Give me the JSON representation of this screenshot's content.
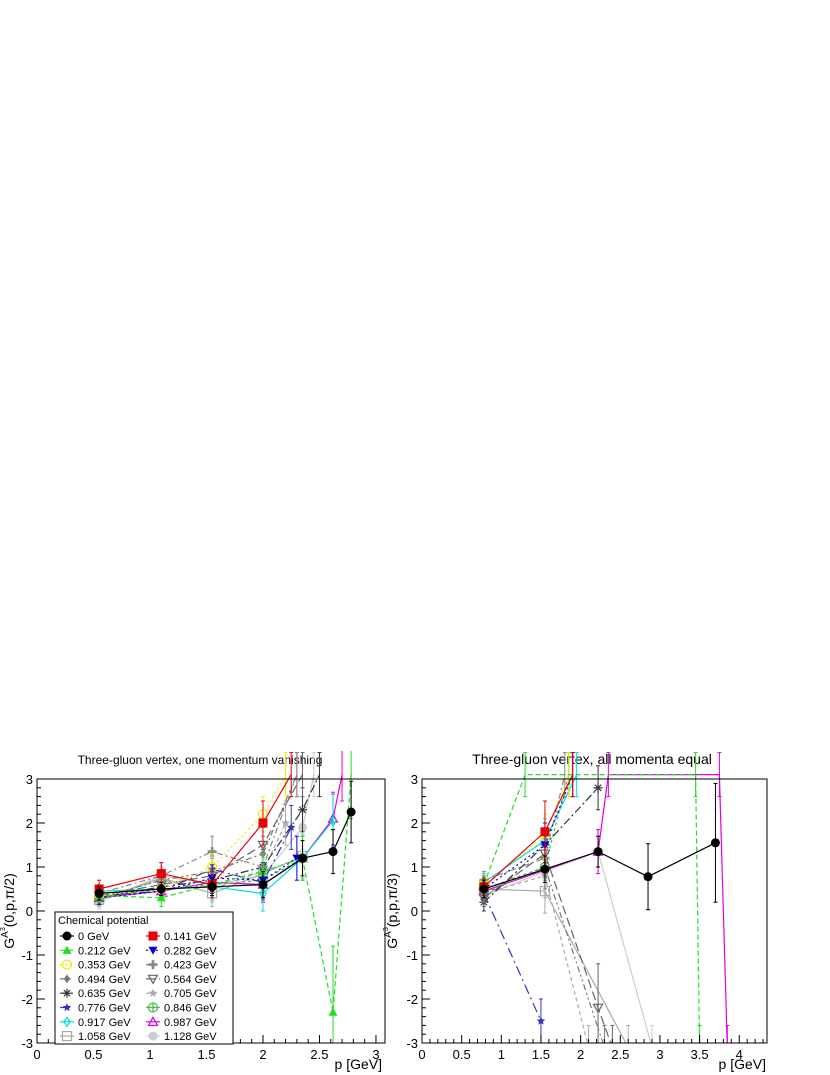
{
  "legend": {
    "title": "Chemical potential",
    "columns": [
      [
        "0 GeV",
        "0.212 GeV",
        "0.353 GeV",
        "0.494 GeV",
        "0.635 GeV",
        "0.776 GeV",
        "0.917 GeV",
        "1.058 GeV"
      ],
      [
        "0.141 GeV",
        "0.282 GeV",
        "0.423 GeV",
        "0.564 GeV",
        "0.705 GeV",
        "0.846 GeV",
        "0.987 GeV",
        "1.128 GeV"
      ]
    ]
  },
  "series_styles": [
    {
      "name": "0 GeV",
      "color": "#000000",
      "marker": "circle",
      "dash": ""
    },
    {
      "name": "0.141 GeV",
      "color": "#e8000b",
      "marker": "square",
      "dash": ""
    },
    {
      "name": "0.212 GeV",
      "color": "#22dd22",
      "marker": "triangle-up",
      "dash": "5,3"
    },
    {
      "name": "0.282 GeV",
      "color": "#0000dd",
      "marker": "triangle-down",
      "dash": "2,3"
    },
    {
      "name": "0.353 GeV",
      "color": "#eeee00",
      "marker": "circle-open",
      "dash": "2,3"
    },
    {
      "name": "0.423 GeV",
      "color": "#888888",
      "marker": "cross",
      "dash": "6,3,2,3"
    },
    {
      "name": "0.494 GeV",
      "color": "#777777",
      "marker": "diamond",
      "dash": "6,3,2,3,2,3"
    },
    {
      "name": "0.564 GeV",
      "color": "#666666",
      "marker": "triangle-down-open",
      "dash": "9,4"
    },
    {
      "name": "0.635 GeV",
      "color": "#333333",
      "marker": "asterisk",
      "dash": "8,3,2,3"
    },
    {
      "name": "0.705 GeV",
      "color": "#aaaaaa",
      "marker": "star",
      "dash": "4,3"
    },
    {
      "name": "0.776 GeV",
      "color": "#3333cc",
      "marker": "star",
      "dash": "10,4,2,4"
    },
    {
      "name": "0.846 GeV",
      "color": "#44bb44",
      "marker": "circle-plus",
      "dash": "3,3"
    },
    {
      "name": "0.917 GeV",
      "color": "#00dddd",
      "marker": "diamond-open",
      "dash": ""
    },
    {
      "name": "0.987 GeV",
      "color": "#dd00dd",
      "marker": "triangle-up-open",
      "dash": ""
    },
    {
      "name": "1.058 GeV",
      "color": "#aaaaaa",
      "marker": "square-open",
      "dash": ""
    },
    {
      "name": "1.128 GeV",
      "color": "#cccccc",
      "marker": "circle",
      "dash": ""
    }
  ],
  "chart_data": [
    {
      "type": "line",
      "title": "Three-gluon vertex, one momentum vanishing",
      "xlabel": "p [GeV]",
      "ylabel_base": "G",
      "ylabel_sup": "A",
      "ylabel_supsup": "3",
      "ylabel_args": "(0,p,π/2)",
      "xlim": [
        0,
        3.08
      ],
      "ylim": [
        -3,
        3
      ],
      "xticks": [
        0,
        0.5,
        1,
        1.5,
        2,
        2.5,
        3
      ],
      "xtick_labels": [
        "0",
        "0.5",
        "1",
        "1.5",
        "2",
        "2.5",
        "3"
      ],
      "yticks": [
        -3,
        -2,
        -1,
        0,
        1,
        2,
        3
      ],
      "ytick_labels": [
        "-3",
        "-2",
        "-1",
        "0",
        "1",
        "2",
        "3"
      ],
      "series": [
        {
          "name": "0 GeV",
          "x": [
            0.55,
            1.1,
            1.55,
            2.0,
            2.35,
            2.62,
            2.78
          ],
          "y": [
            0.4,
            0.5,
            0.55,
            0.6,
            1.2,
            1.35,
            2.25
          ],
          "err": [
            0.15,
            0.15,
            0.2,
            0.3,
            0.4,
            0.5,
            0.7
          ]
        },
        {
          "name": "0.141 GeV",
          "x": [
            0.55,
            1.1,
            1.55,
            2.0,
            2.25
          ],
          "y": [
            0.5,
            0.85,
            0.6,
            2.0,
            3.1
          ],
          "err": [
            0.2,
            0.25,
            0.3,
            0.5,
            0.5
          ]
        },
        {
          "name": "0.212 GeV",
          "x": [
            0.55,
            1.1,
            1.55,
            2.0,
            2.35,
            2.62,
            2.78
          ],
          "y": [
            0.35,
            0.3,
            0.6,
            0.9,
            1.2,
            -2.3,
            3.1
          ],
          "err": [
            0.15,
            0.2,
            0.3,
            0.4,
            0.5,
            1.5,
            1.0
          ]
        },
        {
          "name": "0.282 GeV",
          "x": [
            0.55,
            1.1,
            1.55,
            2.0,
            2.3
          ],
          "y": [
            0.3,
            0.45,
            0.75,
            0.7,
            1.2
          ],
          "err": [
            0.15,
            0.2,
            0.3,
            0.4,
            0.5
          ]
        },
        {
          "name": "0.353 GeV",
          "x": [
            0.55,
            1.1,
            1.55,
            2.0,
            2.2
          ],
          "y": [
            0.35,
            0.5,
            1.0,
            2.2,
            3.1
          ],
          "err": [
            0.15,
            0.2,
            0.3,
            0.4,
            0.5
          ]
        },
        {
          "name": "0.423 GeV",
          "x": [
            0.55,
            1.1,
            1.55,
            2.0,
            2.3
          ],
          "y": [
            0.4,
            0.8,
            1.35,
            1.0,
            3.1
          ],
          "err": [
            0.15,
            0.3,
            0.35,
            0.5,
            0.5
          ]
        },
        {
          "name": "0.494 GeV",
          "x": [
            0.55,
            1.1,
            1.55,
            2.0,
            2.3
          ],
          "y": [
            0.3,
            0.7,
            0.9,
            1.3,
            3.1
          ],
          "err": [
            0.15,
            0.2,
            0.3,
            0.4,
            0.5
          ]
        },
        {
          "name": "0.564 GeV",
          "x": [
            0.55,
            1.1,
            1.55,
            2.0,
            2.35
          ],
          "y": [
            0.35,
            0.6,
            0.8,
            1.5,
            3.1
          ],
          "err": [
            0.15,
            0.2,
            0.3,
            0.4,
            0.5
          ]
        },
        {
          "name": "0.635 GeV",
          "x": [
            0.55,
            1.1,
            1.55,
            2.0,
            2.35,
            2.5
          ],
          "y": [
            0.3,
            0.55,
            0.7,
            1.0,
            2.3,
            3.1
          ],
          "err": [
            0.15,
            0.2,
            0.3,
            0.4,
            0.5,
            0.5
          ]
        },
        {
          "name": "0.705 GeV",
          "x": [
            0.55,
            1.1,
            1.55,
            2.0,
            2.2
          ],
          "y": [
            0.3,
            0.7,
            0.5,
            0.9,
            2.0
          ],
          "err": [
            0.15,
            0.2,
            0.3,
            0.4,
            0.5
          ]
        },
        {
          "name": "0.776 GeV",
          "x": [
            0.55,
            1.1,
            1.55,
            2.0,
            2.25
          ],
          "y": [
            0.35,
            0.45,
            0.95,
            0.65,
            1.9
          ],
          "err": [
            0.15,
            0.2,
            0.3,
            0.4,
            0.5
          ]
        },
        {
          "name": "0.846 GeV",
          "x": [
            0.55,
            1.1,
            1.55,
            2.0,
            2.35
          ],
          "y": [
            0.3,
            0.5,
            0.6,
            0.7,
            1.2
          ],
          "err": [
            0.15,
            0.2,
            0.3,
            0.4,
            0.5
          ]
        },
        {
          "name": "0.917 GeV",
          "x": [
            0.55,
            1.1,
            1.55,
            2.0,
            2.35,
            2.62
          ],
          "y": [
            0.45,
            0.5,
            0.55,
            0.4,
            1.2,
            2.05
          ],
          "err": [
            0.15,
            0.2,
            0.3,
            0.4,
            0.5,
            0.6
          ]
        },
        {
          "name": "0.987 GeV",
          "x": [
            0.55,
            1.1,
            1.55,
            2.0,
            2.35,
            2.62,
            2.7
          ],
          "y": [
            0.3,
            0.45,
            0.65,
            0.6,
            1.2,
            2.1,
            3.1
          ],
          "err": [
            0.15,
            0.2,
            0.3,
            0.4,
            0.5,
            0.6,
            0.6
          ]
        },
        {
          "name": "1.058 GeV",
          "x": [
            0.55,
            1.1,
            1.55,
            2.0,
            2.35
          ],
          "y": [
            0.25,
            0.75,
            0.4,
            0.85,
            1.25
          ],
          "err": [
            0.15,
            0.2,
            0.3,
            0.4,
            0.5
          ]
        },
        {
          "name": "1.128 GeV",
          "x": [
            0.55,
            1.1,
            1.55,
            2.0,
            2.35,
            2.45
          ],
          "y": [
            0.2,
            0.8,
            0.6,
            0.8,
            1.9,
            3.1
          ],
          "err": [
            0.15,
            0.2,
            0.3,
            0.4,
            0.5,
            0.5
          ]
        }
      ]
    },
    {
      "type": "line",
      "title": "Three-gluon vertex, all momenta equal",
      "xlabel": "p [GeV]",
      "ylabel_base": "G",
      "ylabel_sup": "A",
      "ylabel_supsup": "3",
      "ylabel_args": "(p,p,π/3)",
      "xlim": [
        0,
        4.35
      ],
      "ylim": [
        -3,
        3
      ],
      "xticks": [
        0,
        0.5,
        1,
        1.5,
        2,
        2.5,
        3,
        3.5,
        4
      ],
      "xtick_labels": [
        "0",
        "0.5",
        "1",
        "1.5",
        "2",
        "2.5",
        "3",
        "3.5",
        "4"
      ],
      "yticks": [
        -3,
        -2,
        -1,
        0,
        1,
        2,
        3
      ],
      "ytick_labels": [
        "-3",
        "-2",
        "-1",
        "0",
        "1",
        "2",
        "3"
      ],
      "series": [
        {
          "name": "0 GeV",
          "x": [
            0.78,
            1.55,
            2.22,
            2.85,
            3.7
          ],
          "y": [
            0.5,
            0.95,
            1.35,
            0.78,
            1.55
          ],
          "err": [
            0.2,
            0.3,
            0.35,
            0.75,
            1.35
          ]
        },
        {
          "name": "0.141 GeV",
          "x": [
            0.78,
            1.55,
            1.9
          ],
          "y": [
            0.55,
            1.8,
            3.1
          ],
          "err": [
            0.2,
            0.7,
            0.5
          ]
        },
        {
          "name": "0.212 GeV",
          "x": [
            0.78,
            1.3,
            3.45,
            3.5
          ],
          "y": [
            0.6,
            3.1,
            3.1,
            -3.1
          ],
          "err": [
            0.2,
            0.5,
            0.5,
            0.5
          ]
        },
        {
          "name": "0.282 GeV",
          "x": [
            0.78,
            1.55,
            1.9
          ],
          "y": [
            0.5,
            1.5,
            3.1
          ],
          "err": [
            0.2,
            0.5,
            0.5
          ]
        },
        {
          "name": "0.353 GeV",
          "x": [
            0.78,
            1.55,
            1.85
          ],
          "y": [
            0.6,
            1.7,
            3.1
          ],
          "err": [
            0.2,
            0.5,
            0.5
          ]
        },
        {
          "name": "0.423 GeV",
          "x": [
            0.78,
            1.55,
            1.8
          ],
          "y": [
            0.7,
            1.2,
            3.1
          ],
          "err": [
            0.2,
            0.5,
            0.5
          ]
        },
        {
          "name": "0.494 GeV",
          "x": [
            0.78,
            1.55,
            2.3
          ],
          "y": [
            0.4,
            1.0,
            -3.1
          ],
          "err": [
            0.2,
            0.5,
            0.5
          ]
        },
        {
          "name": "0.564 GeV",
          "x": [
            0.78,
            1.55,
            2.22,
            2.4
          ],
          "y": [
            0.3,
            1.3,
            -2.2,
            -3.1
          ],
          "err": [
            0.2,
            0.5,
            1.0,
            0.5
          ]
        },
        {
          "name": "0.635 GeV",
          "x": [
            0.78,
            1.55,
            2.22
          ],
          "y": [
            0.2,
            1.5,
            2.8
          ],
          "err": [
            0.2,
            0.5,
            0.5
          ]
        },
        {
          "name": "0.705 GeV",
          "x": [
            0.78,
            1.55,
            2.1
          ],
          "y": [
            0.4,
            0.8,
            -3.1
          ],
          "err": [
            0.2,
            0.5,
            0.5
          ]
        },
        {
          "name": "0.776 GeV",
          "x": [
            0.78,
            1.5
          ],
          "y": [
            0.4,
            -2.5
          ],
          "err": [
            0.2,
            0.5
          ]
        },
        {
          "name": "0.846 GeV",
          "x": [
            0.78,
            1.55,
            1.85
          ],
          "y": [
            0.5,
            1.0,
            3.1
          ],
          "err": [
            0.2,
            0.5,
            0.5
          ]
        },
        {
          "name": "0.917 GeV",
          "x": [
            0.78,
            1.55,
            1.95
          ],
          "y": [
            0.65,
            1.6,
            3.1
          ],
          "err": [
            0.2,
            0.5,
            0.5
          ]
        },
        {
          "name": "0.987 GeV",
          "x": [
            0.78,
            2.22,
            2.35,
            3.75,
            3.85
          ],
          "y": [
            0.45,
            1.35,
            3.1,
            3.1,
            -3.1
          ],
          "err": [
            0.2,
            0.5,
            0.5,
            0.5,
            0.5
          ]
        },
        {
          "name": "1.058 GeV",
          "x": [
            0.78,
            1.55,
            2.6
          ],
          "y": [
            0.5,
            0.45,
            -3.1
          ],
          "err": [
            0.2,
            0.5,
            0.5
          ]
        },
        {
          "name": "1.128 GeV",
          "x": [
            0.78,
            1.55,
            2.22,
            2.9
          ],
          "y": [
            0.35,
            0.9,
            1.35,
            -3.1
          ],
          "err": [
            0.2,
            0.5,
            0.5,
            0.5
          ]
        }
      ]
    }
  ]
}
